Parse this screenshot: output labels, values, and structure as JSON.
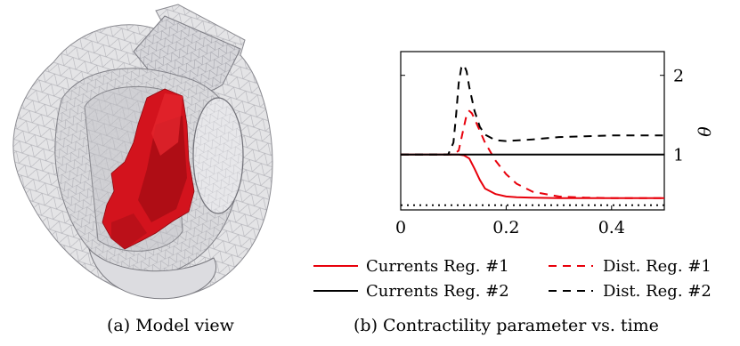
{
  "subfigure_a": {
    "caption": "(a) Model view"
  },
  "subfigure_b": {
    "caption": "(b) Contractility parameter vs. time"
  },
  "chart_data": {
    "type": "line",
    "title": "",
    "xlabel": "",
    "ylabel": "θ",
    "xlim": [
      0,
      0.5
    ],
    "ylim": [
      0.3,
      2.3
    ],
    "x_ticks": [
      {
        "value": 0,
        "label": "0"
      },
      {
        "value": 0.2,
        "label": "0.2"
      },
      {
        "value": 0.4,
        "label": "0.4"
      }
    ],
    "y_ticks": [
      {
        "value": 1,
        "label": "1"
      },
      {
        "value": 2,
        "label": "2"
      }
    ],
    "grid": false,
    "legend_position": "below",
    "series": [
      {
        "name": "Currents Reg. #1",
        "color": "#e8000b",
        "style": "solid",
        "x": [
          0,
          0.1,
          0.11,
          0.12,
          0.13,
          0.14,
          0.15,
          0.16,
          0.18,
          0.2,
          0.22,
          0.25,
          0.3,
          0.4,
          0.5
        ],
        "y": [
          1.0,
          1.0,
          1.0,
          0.99,
          0.95,
          0.82,
          0.68,
          0.57,
          0.5,
          0.47,
          0.46,
          0.455,
          0.45,
          0.45,
          0.45
        ]
      },
      {
        "name": "Dist. Reg. #1",
        "color": "#e8000b",
        "style": "dashed",
        "x": [
          0,
          0.1,
          0.11,
          0.12,
          0.125,
          0.13,
          0.135,
          0.14,
          0.15,
          0.16,
          0.18,
          0.2,
          0.22,
          0.25,
          0.3,
          0.35,
          0.4,
          0.5
        ],
        "y": [
          1.0,
          1.0,
          1.05,
          1.35,
          1.5,
          1.55,
          1.52,
          1.45,
          1.3,
          1.15,
          0.92,
          0.75,
          0.63,
          0.53,
          0.47,
          0.455,
          0.45,
          0.45
        ]
      },
      {
        "name": "Currents Reg. #2",
        "color": "#000000",
        "style": "solid",
        "x": [
          0,
          0.5
        ],
        "y": [
          1.0,
          1.0
        ]
      },
      {
        "name": "Dist. Reg. #2",
        "color": "#000000",
        "style": "dashed",
        "x": [
          0,
          0.09,
          0.1,
          0.105,
          0.11,
          0.115,
          0.12,
          0.125,
          0.13,
          0.14,
          0.15,
          0.16,
          0.18,
          0.2,
          0.25,
          0.3,
          0.35,
          0.4,
          0.45,
          0.5
        ],
        "y": [
          1.0,
          1.0,
          1.15,
          1.5,
          1.9,
          2.1,
          2.13,
          2.05,
          1.85,
          1.55,
          1.35,
          1.25,
          1.18,
          1.17,
          1.19,
          1.22,
          1.23,
          1.24,
          1.24,
          1.24
        ]
      },
      {
        "name": "",
        "color": "#000000",
        "style": "dotted",
        "x": [
          0,
          0.5
        ],
        "y": [
          0.36,
          0.36
        ]
      }
    ]
  }
}
